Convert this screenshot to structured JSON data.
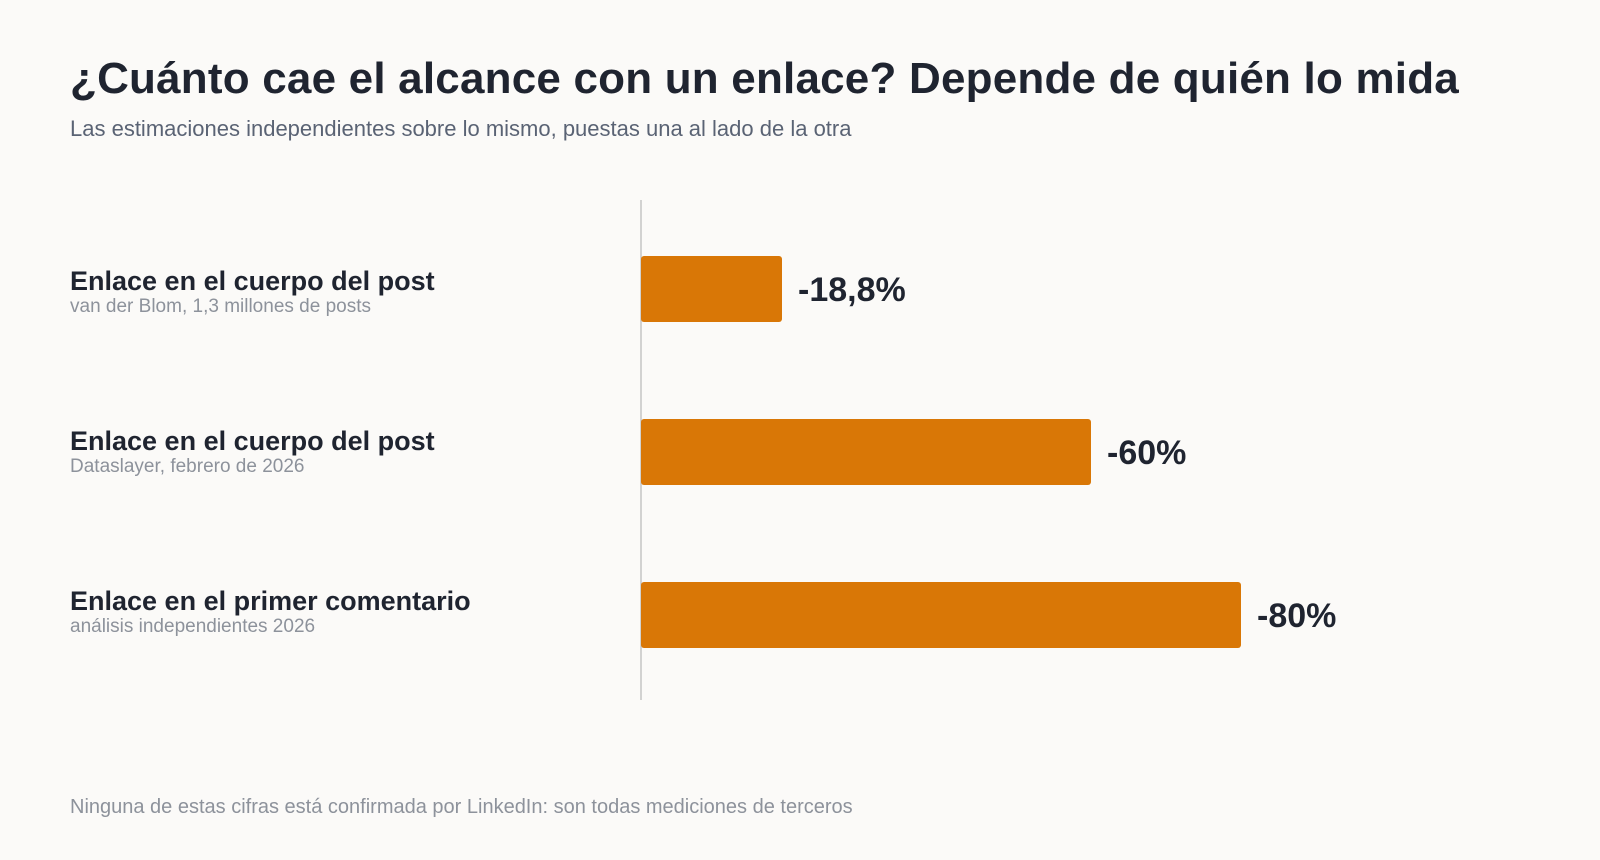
{
  "title": "¿Cuánto cae el alcance con un enlace? Depende de quién lo mida",
  "subtitle": "Las estimaciones independientes sobre lo mismo, puestas una al lado de la otra",
  "footnote": "Ninguna de estas cifras está confirmada por LinkedIn: son todas mediciones de terceros",
  "colors": {
    "bar": "#d97706",
    "axis": "#c4c4c4",
    "value_label": "#1f2430"
  },
  "chart_data": {
    "type": "bar",
    "orientation": "horizontal",
    "categories": [
      {
        "label": "Enlace en el cuerpo del post",
        "source": "van der Blom, 1,3 millones de posts"
      },
      {
        "label": "Enlace en el cuerpo del post",
        "source": "Dataslayer, febrero de 2026"
      },
      {
        "label": "Enlace en el primer comentario",
        "source": "análisis independientes 2026"
      }
    ],
    "values": [
      -18.8,
      -60,
      -80
    ],
    "value_labels": [
      "-18,8%",
      "-60%",
      "-80%"
    ],
    "unit": "%",
    "xlim": [
      0,
      -100
    ],
    "grid": false,
    "legend": "none"
  }
}
